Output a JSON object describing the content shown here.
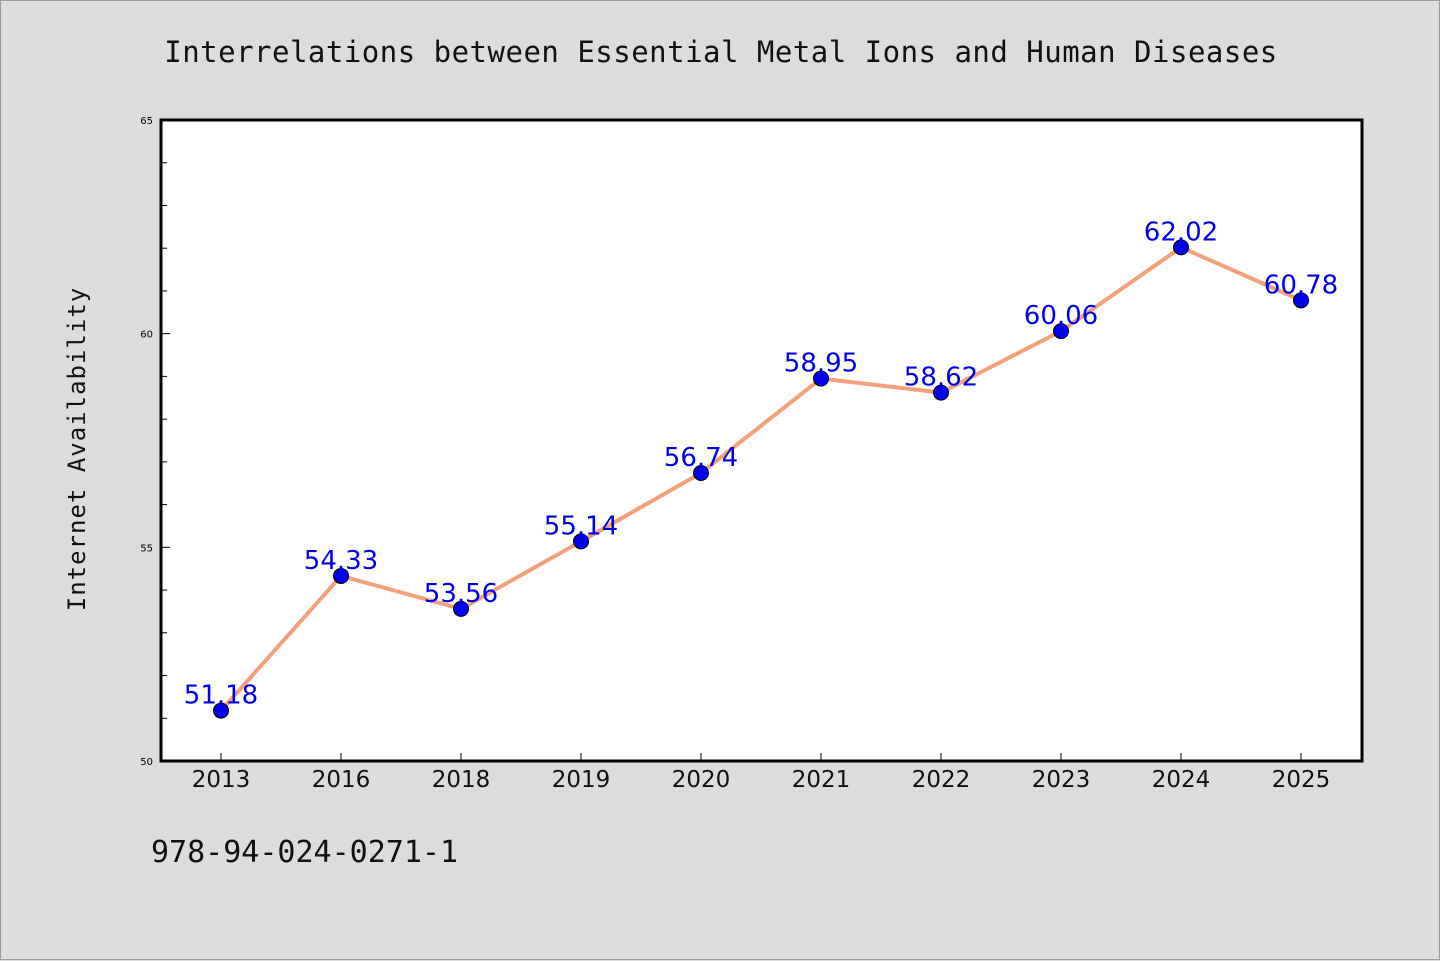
{
  "chart_data": {
    "type": "line",
    "title": "Interrelations between Essential Metal Ions and Human Diseases",
    "ylabel": "Internet Availability",
    "xlabel": "",
    "categories": [
      "2013",
      "2016",
      "2018",
      "2019",
      "2020",
      "2021",
      "2022",
      "2023",
      "2024",
      "2025"
    ],
    "values": [
      51.18,
      54.33,
      53.56,
      55.14,
      56.74,
      58.95,
      58.62,
      60.06,
      62.02,
      60.78
    ],
    "data_labels": [
      "51.18",
      "54.33",
      "53.56",
      "55.14",
      "56.74",
      "58.95",
      "58.62",
      "60.06",
      "62.02",
      "60.78"
    ],
    "ylim": [
      50,
      65
    ],
    "yticks": [
      "50",
      "55",
      "60",
      "65"
    ],
    "grid": false,
    "line_color": "#f4a07a",
    "marker_color": "#0000ee",
    "label_color": "#0000ee",
    "background": "#dcdcdc",
    "plot_background": "#ffffff"
  },
  "footer_text": "978-94-024-0271-1"
}
